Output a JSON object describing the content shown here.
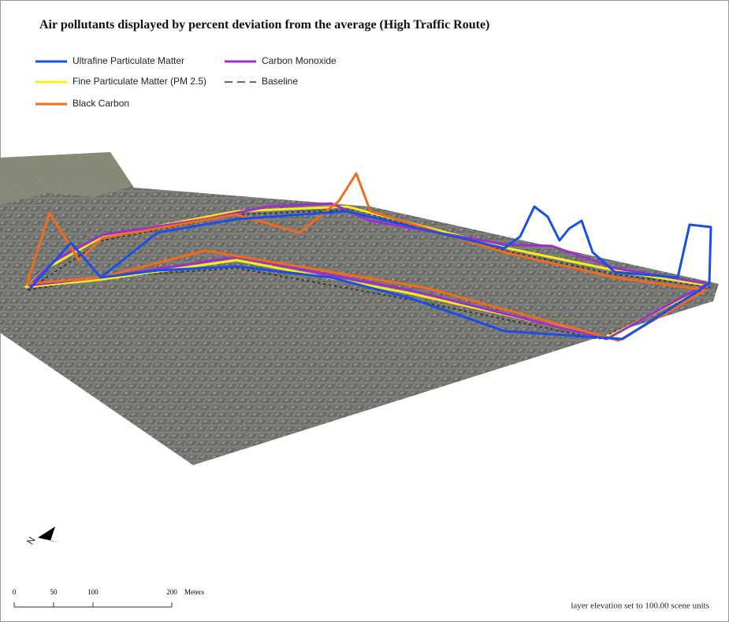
{
  "title": "Air pollutants displayed by percent deviation from the average (High Traffic Route)",
  "legend": [
    {
      "label": "Ultrafine Particulate Matter",
      "color": "#1a4fe6",
      "style": "solid"
    },
    {
      "label": "Carbon Monoxide",
      "color": "#9b2fd0",
      "style": "solid"
    },
    {
      "label": "Fine Particulate Matter (PM 2.5)",
      "color": "#f5ee1a",
      "style": "solid"
    },
    {
      "label": "Baseline",
      "color": "#333333",
      "style": "dashed"
    },
    {
      "label": "Black Carbon",
      "color": "#f26a1b",
      "style": "solid"
    }
  ],
  "north_label": "N",
  "scale_bar": {
    "ticks": [
      0,
      50,
      100,
      200
    ],
    "unit": "Meters"
  },
  "note": "layer elevation set to 100.00 scene units"
}
